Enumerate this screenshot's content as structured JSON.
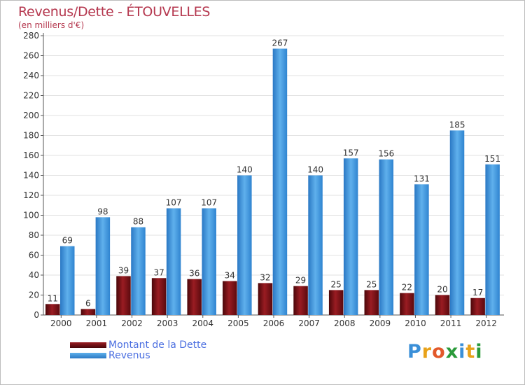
{
  "chart_data": {
    "type": "bar",
    "title": "Revenus/Dette - ÉTOUVELLES",
    "subtitle": "(en milliers d'€)",
    "categories": [
      "2000",
      "2001",
      "2002",
      "2003",
      "2004",
      "2005",
      "2006",
      "2007",
      "2008",
      "2009",
      "2010",
      "2011",
      "2012"
    ],
    "series": [
      {
        "name": "Montant de la Dette",
        "color": "#7a0d12",
        "values": [
          11,
          6,
          39,
          37,
          36,
          34,
          32,
          29,
          25,
          25,
          22,
          20,
          17
        ]
      },
      {
        "name": "Revenus",
        "color": "#3a8fd8",
        "values": [
          69,
          98,
          88,
          107,
          107,
          140,
          267,
          140,
          157,
          156,
          131,
          185,
          151
        ]
      }
    ],
    "ylim": [
      0,
      280
    ],
    "yticks": [
      0,
      20,
      40,
      60,
      80,
      100,
      120,
      140,
      160,
      180,
      200,
      220,
      240,
      260,
      280
    ],
    "grid": true,
    "legend_position": "bottom-left"
  },
  "logo": {
    "letters": [
      "P",
      "r",
      "o",
      "x",
      "i",
      "t",
      "i"
    ],
    "colors": [
      "#3a8fd8",
      "#e8a21a",
      "#e2582a",
      "#2a9a3a",
      "#3a8fd8",
      "#e8a21a",
      "#2a9a3a"
    ]
  }
}
